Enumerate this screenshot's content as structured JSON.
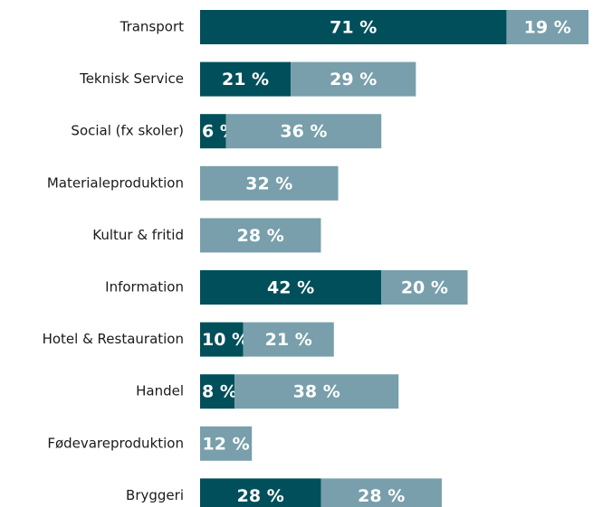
{
  "chart_data": {
    "type": "bar",
    "orientation": "horizontal",
    "stacked": true,
    "categories": [
      "Transport",
      "Teknisk Service",
      "Social (fx skoler)",
      "Materialeproduktion",
      "Kultur & fritid",
      "Information",
      "Hotel & Restauration",
      "Handel",
      "Fødevareproduktion",
      "Bryggeri"
    ],
    "series": [
      {
        "color": "#004f5a",
        "values": [
          71,
          21,
          6,
          null,
          null,
          42,
          10,
          8,
          null,
          28
        ],
        "value_labels": [
          "71 %",
          "21 %",
          "6 %",
          null,
          null,
          "42 %",
          "10 %",
          "8 %",
          null,
          "28 %"
        ]
      },
      {
        "color": "#789fab",
        "values": [
          19,
          29,
          36,
          32,
          28,
          20,
          21,
          38,
          12,
          28
        ],
        "value_labels": [
          "19 %",
          "29 %",
          "36 %",
          "32 %",
          "28 %",
          "20 %",
          "21 %",
          "38 %",
          "12 %",
          "28 %"
        ]
      }
    ]
  }
}
